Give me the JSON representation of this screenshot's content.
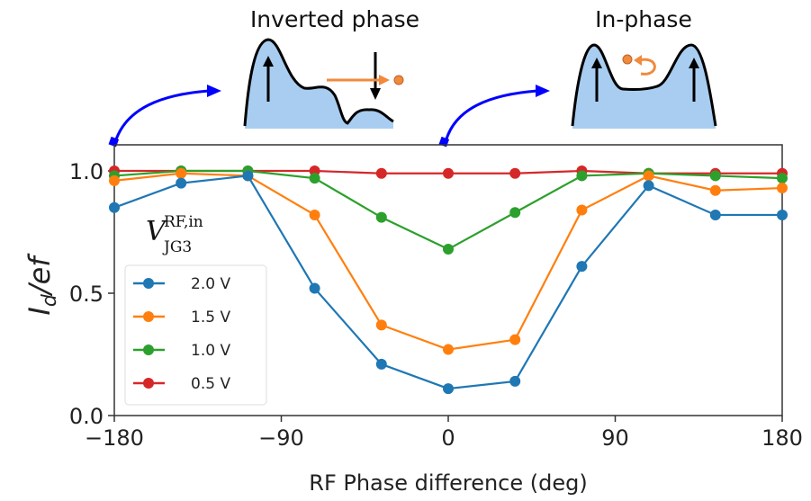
{
  "chart_data": {
    "type": "line",
    "xlabel": "RF Phase difference (deg)",
    "ylabel": "I_d/ef",
    "ylabel_main": "I",
    "ylabel_sub": "d",
    "ylabel_rest": "/ef",
    "xlim": [
      -180,
      180
    ],
    "ylim": [
      0,
      1.1
    ],
    "xticks": [
      -180,
      -90,
      0,
      90,
      180
    ],
    "xtick_labels": [
      "−180",
      "−90",
      "0",
      "90",
      "180"
    ],
    "yticks": [
      0.0,
      0.5,
      1.0
    ],
    "ytick_labels": [
      "0.0",
      "0.5",
      "1.0"
    ],
    "grid": false,
    "legend_title_main": "V",
    "legend_title_sup": "RF,in",
    "legend_title_sub": "JG3",
    "legend_placement": "center-left",
    "x": [
      -180,
      -144,
      -108,
      -72,
      -36,
      0,
      36,
      72,
      108,
      144,
      180
    ],
    "series": [
      {
        "name": "2.0 V",
        "color": "#1f77b4",
        "values": [
          0.85,
          0.95,
          0.98,
          0.52,
          0.21,
          0.11,
          0.14,
          0.61,
          0.94,
          0.82,
          0.82
        ]
      },
      {
        "name": "1.5 V",
        "color": "#ff7f0e",
        "values": [
          0.96,
          0.99,
          0.98,
          0.82,
          0.37,
          0.27,
          0.31,
          0.84,
          0.98,
          0.92,
          0.93
        ]
      },
      {
        "name": "1.0 V",
        "color": "#2ca02c",
        "values": [
          0.98,
          1.0,
          1.0,
          0.97,
          0.81,
          0.68,
          0.83,
          0.98,
          0.99,
          0.98,
          0.97
        ]
      },
      {
        "name": "0.5 V",
        "color": "#d62728",
        "values": [
          1.0,
          1.0,
          1.0,
          1.0,
          0.99,
          0.99,
          0.99,
          1.0,
          0.99,
          0.99,
          0.99
        ]
      }
    ],
    "annotations": [
      {
        "label": "Inverted phase",
        "at_x": -180
      },
      {
        "label": "In-phase",
        "at_x": 0
      }
    ]
  },
  "colors": {
    "pointer_arrow": "#0000ff",
    "potential_fill": "#a8cdf0",
    "electron": "#f08a3c"
  }
}
